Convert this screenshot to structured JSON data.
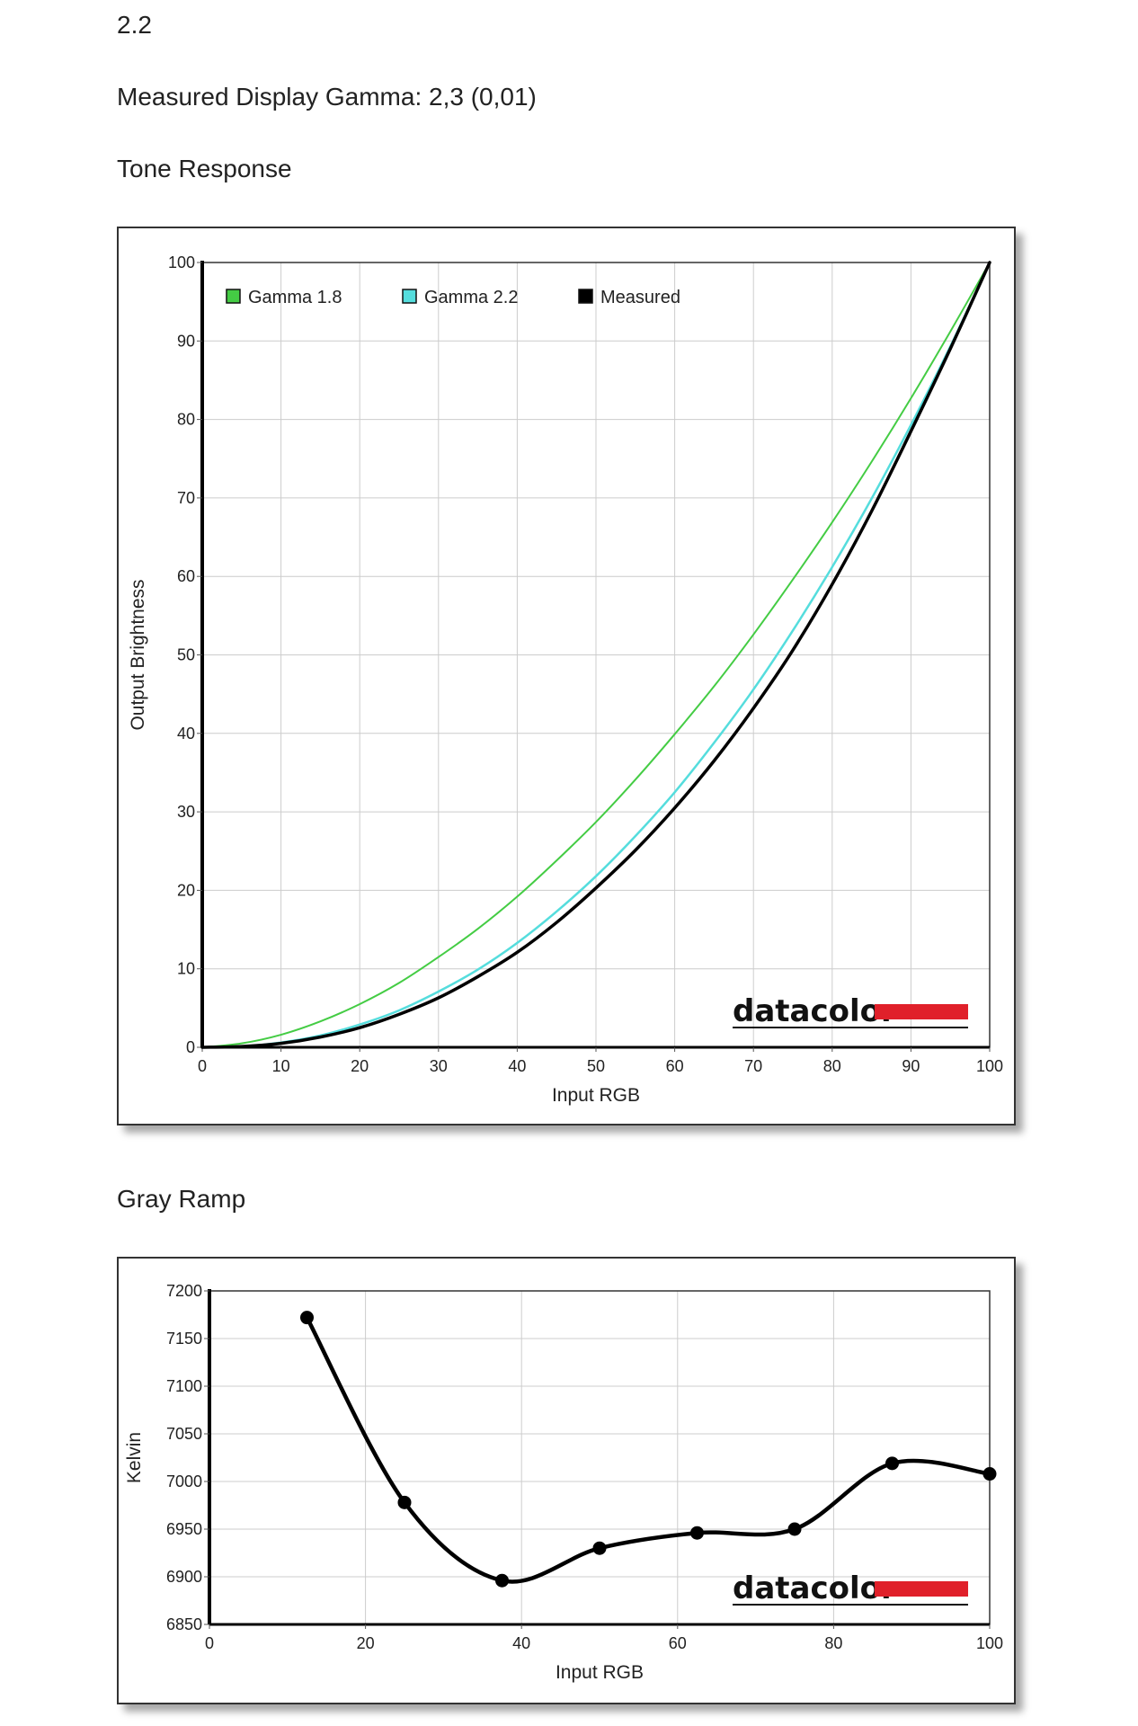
{
  "header": {
    "target_gamma": "2.2",
    "measured_gamma": "Measured Display Gamma: 2,3 (0,01)"
  },
  "sections": {
    "tone_title": "Tone Response",
    "gray_title": "Gray Ramp"
  },
  "logo": {
    "text": "datacolor",
    "bar_color": "#e0202a"
  },
  "colors": {
    "gamma18": "#44cc44",
    "gamma22": "#55dddd",
    "measured": "#000000",
    "grid": "#cccccc"
  },
  "chart_data": [
    {
      "type": "line",
      "xlabel": "Input RGB",
      "ylabel": "Output Brightness",
      "xlim": [
        0,
        100
      ],
      "ylim": [
        0,
        100
      ],
      "xticks": [
        0,
        10,
        20,
        30,
        40,
        50,
        60,
        70,
        80,
        90,
        100
      ],
      "yticks": [
        0,
        10,
        20,
        30,
        40,
        50,
        60,
        70,
        80,
        90,
        100
      ],
      "grid": true,
      "legend_position": "top-left",
      "series": [
        {
          "name": "Gamma 1.8",
          "color": "#44cc44",
          "x": [
            0,
            5,
            10,
            15,
            20,
            25,
            30,
            35,
            40,
            45,
            50,
            55,
            60,
            65,
            70,
            75,
            80,
            85,
            90,
            95,
            100
          ],
          "y": [
            0,
            0.5,
            1.6,
            3.3,
            5.5,
            8.2,
            11.5,
            15.1,
            19.2,
            23.8,
            28.7,
            34.1,
            39.9,
            46.0,
            52.6,
            59.6,
            66.9,
            74.6,
            82.7,
            91.2,
            100
          ]
        },
        {
          "name": "Gamma 2.2",
          "color": "#55dddd",
          "x": [
            0,
            5,
            10,
            15,
            20,
            25,
            30,
            35,
            40,
            45,
            50,
            55,
            60,
            65,
            70,
            75,
            80,
            85,
            90,
            95,
            100
          ],
          "y": [
            0,
            0.1,
            0.6,
            1.5,
            2.9,
            4.7,
            7.1,
            9.9,
            13.3,
            17.3,
            21.8,
            26.9,
            32.5,
            38.8,
            45.6,
            53.1,
            61.2,
            69.9,
            79.3,
            89.3,
            100
          ]
        },
        {
          "name": "Measured",
          "color": "#000000",
          "x": [
            0,
            5,
            10,
            15,
            20,
            25,
            30,
            35,
            40,
            45,
            50,
            55,
            60,
            65,
            70,
            75,
            80,
            85,
            90,
            95,
            100
          ],
          "y": [
            0,
            0.1,
            0.5,
            1.3,
            2.5,
            4.2,
            6.3,
            9.0,
            12.1,
            15.9,
            20.3,
            25.1,
            30.5,
            36.5,
            43.2,
            50.6,
            59.0,
            68.3,
            78.5,
            89.0,
            100
          ]
        }
      ]
    },
    {
      "type": "line",
      "xlabel": "Input RGB",
      "ylabel": "Kelvin",
      "xlim": [
        0,
        100
      ],
      "ylim": [
        6850,
        7200
      ],
      "xticks": [
        0,
        20,
        40,
        60,
        80,
        100
      ],
      "yticks": [
        6850,
        6900,
        6950,
        7000,
        7050,
        7100,
        7150,
        7200
      ],
      "grid": true,
      "series": [
        {
          "name": "",
          "color": "#000000",
          "x": [
            12.5,
            25,
            37.5,
            50,
            62.5,
            75,
            87.5,
            100
          ],
          "y": [
            7172,
            6978,
            6896,
            6930,
            6946,
            6950,
            7019,
            7008
          ]
        }
      ]
    }
  ]
}
